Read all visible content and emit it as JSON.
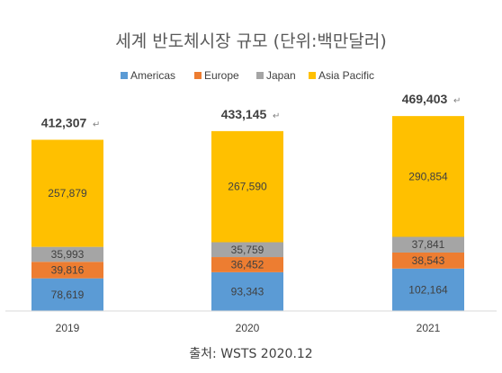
{
  "chart_data": {
    "type": "bar",
    "stacked": true,
    "title": "세계 반도체시장 규모 (단위:백만달러)",
    "categories": [
      "2019",
      "2020",
      "2021"
    ],
    "series": [
      {
        "name": "Americas",
        "color": "#5B9BD5",
        "values": [
          78619,
          93343,
          102164
        ],
        "labels": [
          "78,619",
          "93,343",
          "102,164"
        ]
      },
      {
        "name": "Europe",
        "color": "#ED7D31",
        "values": [
          39816,
          36452,
          38543
        ],
        "labels": [
          "39,816",
          "36,452",
          "38,543"
        ]
      },
      {
        "name": "Japan",
        "color": "#A5A5A5",
        "values": [
          35993,
          35759,
          37841
        ],
        "labels": [
          "35,993",
          "35,759",
          "37,841"
        ]
      },
      {
        "name": "Asia Pacific",
        "color": "#FFC000",
        "values": [
          257879,
          267590,
          290854
        ],
        "labels": [
          "257,879",
          "267,590",
          "290,854"
        ]
      }
    ],
    "totals": [
      412307,
      433145,
      469403
    ],
    "total_labels": [
      "412,307",
      "433,145",
      "469,403"
    ],
    "total_mark": "↵",
    "legend_position": "top",
    "grid": false,
    "source": "출처: WSTS 2020.12"
  }
}
